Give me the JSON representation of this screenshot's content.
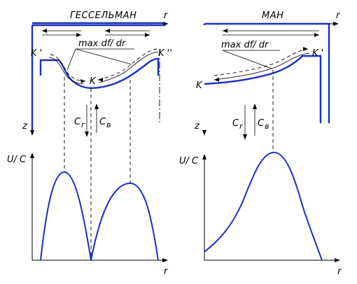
{
  "left_panel": {
    "title": "ГЕССЕЛЬМАН",
    "axis_r_top": "r",
    "axis_r_bottom": "r",
    "axis_z": "z",
    "axis_uc": "U/ C",
    "label_k_prime": "K '",
    "label_k_double_prime": "K ''",
    "label_k": "K",
    "label_max_dfdr": "max df/ dr",
    "label_c_left": "C",
    "label_c_left_sub": "r",
    "label_c_right": "C",
    "label_c_right_sub": "в"
  },
  "right_panel": {
    "title": "МАН",
    "axis_r_top": "r",
    "axis_r_bottom": "r",
    "axis_z": "z",
    "axis_uc": "U/ C",
    "label_k_prime": "K '",
    "label_k": "K",
    "label_max_dfdr": "max df/ dr",
    "label_c_left": "C",
    "label_c_left_sub": "r",
    "label_c_right": "C",
    "label_c_right_sub": "в"
  },
  "colors": {
    "wall": "#1a2fc2",
    "lines": "#000000"
  }
}
